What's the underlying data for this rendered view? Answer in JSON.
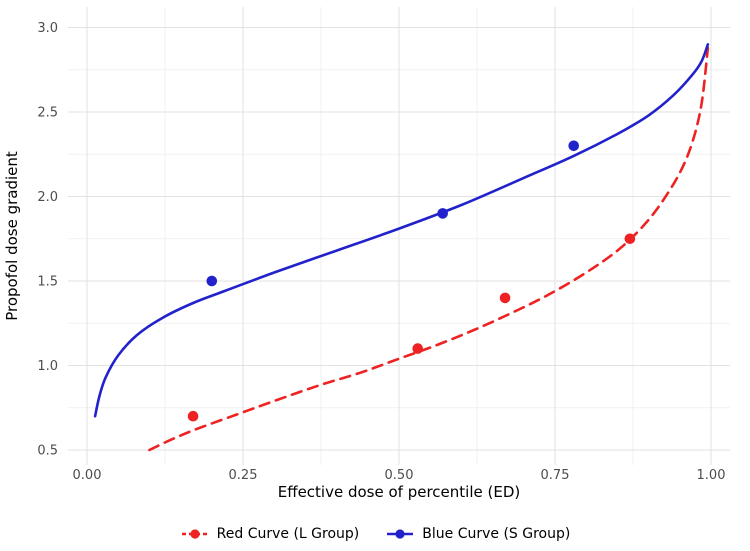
{
  "chart_data": {
    "type": "line",
    "title": "",
    "xlabel": "Effective dose of percentile (ED)",
    "ylabel": "Propofol dose gradient",
    "xlim": [
      0,
      1
    ],
    "ylim": [
      0.5,
      3.0
    ],
    "x_ticks": [
      0,
      0.25,
      0.5,
      0.75,
      1
    ],
    "x_tick_labels": [
      "0.00",
      "0.25",
      "0.50",
      "0.75",
      "1.00"
    ],
    "y_ticks": [
      0.5,
      1.0,
      1.5,
      2.0,
      2.5,
      3.0
    ],
    "y_tick_labels": [
      "0.5",
      "1.0",
      "1.5",
      "2.0",
      "2.5",
      "3.0"
    ],
    "grid": "major+minor",
    "legend_position": "bottom",
    "colors": {
      "background": "#ffffff",
      "grid_major": "#e2e2e2",
      "grid_minor": "#f1f1f1",
      "tick_label": "#4d4d4d",
      "axis_title": "#000000"
    },
    "series": [
      {
        "name": "Red Curve (L Group)",
        "color": "#ee2222",
        "line_style": "dashed",
        "marker": "circle",
        "points": [
          [
            0.17,
            0.7
          ],
          [
            0.53,
            1.1
          ],
          [
            0.67,
            1.4
          ],
          [
            0.87,
            1.75
          ]
        ],
        "curve": [
          [
            0.1,
            0.5
          ],
          [
            0.14,
            0.57
          ],
          [
            0.18,
            0.63
          ],
          [
            0.24,
            0.71
          ],
          [
            0.3,
            0.79
          ],
          [
            0.37,
            0.88
          ],
          [
            0.44,
            0.96
          ],
          [
            0.5,
            1.04
          ],
          [
            0.56,
            1.12
          ],
          [
            0.62,
            1.21
          ],
          [
            0.68,
            1.31
          ],
          [
            0.74,
            1.42
          ],
          [
            0.8,
            1.55
          ],
          [
            0.85,
            1.68
          ],
          [
            0.89,
            1.82
          ],
          [
            0.92,
            1.96
          ],
          [
            0.95,
            2.14
          ],
          [
            0.97,
            2.32
          ],
          [
            0.985,
            2.55
          ],
          [
            0.995,
            2.88
          ]
        ]
      },
      {
        "name": "Blue Curve (S Group)",
        "color": "#2222cc",
        "line_style": "solid",
        "marker": "circle",
        "points": [
          [
            0.2,
            1.5
          ],
          [
            0.57,
            1.9
          ],
          [
            0.78,
            2.3
          ]
        ],
        "curve": [
          [
            0.013,
            0.7
          ],
          [
            0.02,
            0.82
          ],
          [
            0.03,
            0.93
          ],
          [
            0.05,
            1.06
          ],
          [
            0.08,
            1.18
          ],
          [
            0.12,
            1.28
          ],
          [
            0.17,
            1.37
          ],
          [
            0.22,
            1.44
          ],
          [
            0.3,
            1.55
          ],
          [
            0.4,
            1.68
          ],
          [
            0.5,
            1.81
          ],
          [
            0.6,
            1.95
          ],
          [
            0.7,
            2.11
          ],
          [
            0.78,
            2.24
          ],
          [
            0.85,
            2.37
          ],
          [
            0.9,
            2.48
          ],
          [
            0.94,
            2.6
          ],
          [
            0.97,
            2.72
          ],
          [
            0.985,
            2.8
          ],
          [
            0.995,
            2.9
          ]
        ]
      }
    ]
  }
}
